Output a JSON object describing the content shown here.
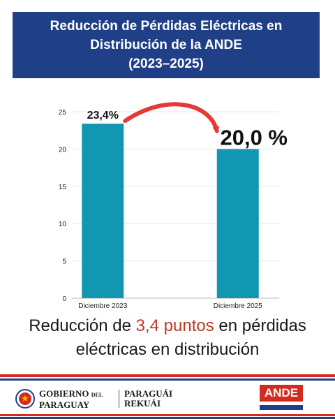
{
  "header": {
    "title_line1": "Reducción de Pérdidas Eléctricas en",
    "title_line2": "Distribución de la ANDE",
    "title_line3": "(2023–2025)"
  },
  "chart_data": {
    "type": "bar",
    "categories": [
      "Diciembre 2023",
      "Diciembre 2025"
    ],
    "values": [
      23.4,
      20.0
    ],
    "value_labels": [
      "23,4%",
      "20,0 %"
    ],
    "yticks": [
      "0",
      "5",
      "10",
      "15",
      "20",
      "25"
    ],
    "ylim": [
      0,
      25
    ],
    "grid": true,
    "bar_color": "#1197b1",
    "arrow_color": "#e53935",
    "title": "",
    "xlabel": "",
    "ylabel": ""
  },
  "summary": {
    "part1": "Reducción de ",
    "highlight": "3,4 puntos",
    "part2": " en pérdidas",
    "line2": "eléctricas en distribución",
    "highlight_color": "#c0392b"
  },
  "footer": {
    "gov_line1": "GOBIERNO",
    "gov_del": "DEL",
    "gov_line2": "PARAGUAY",
    "slogan_line1": "PARAGUÁI",
    "slogan_line2": "REKUÁI",
    "ande_label": "ANDE"
  }
}
